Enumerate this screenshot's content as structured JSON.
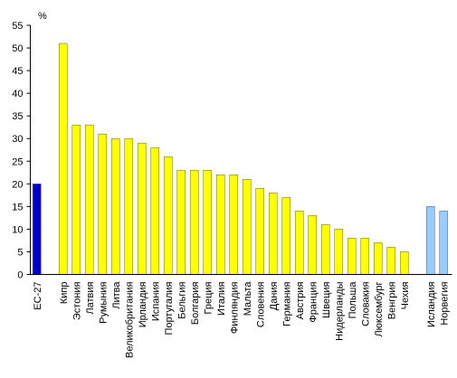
{
  "chart_data": {
    "type": "bar",
    "ylabel": "%",
    "ylim": [
      0,
      55
    ],
    "yticks": [
      0,
      5,
      10,
      15,
      20,
      25,
      30,
      35,
      40,
      45,
      50,
      55
    ],
    "grid": false,
    "colors": {
      "aggregate": "#0000cc",
      "member": "#ffff00",
      "non_member": "#99ccff",
      "outline": "#808000",
      "axis": "#000000"
    },
    "groups": [
      {
        "role": "aggregate",
        "categories": [
          "ЕС-27"
        ],
        "values": [
          20
        ]
      },
      {
        "role": "member",
        "categories": [
          "Кипр",
          "Эстония",
          "Латвия",
          "Румыния",
          "Литва",
          "Великобритания",
          "Ирландия",
          "Испания",
          "Португалия",
          "Бельгия",
          "Болгария",
          "Греция",
          "Италия",
          "Финляндия",
          "Мальта",
          "Словения",
          "Дания",
          "Германия",
          "Австрия",
          "Франция",
          "Швеция",
          "Нидерланды",
          "Польша",
          "Словакия",
          "Люксембург",
          "Венгрия",
          "Чехия"
        ],
        "values": [
          51,
          33,
          33,
          31,
          30,
          30,
          29,
          28,
          26,
          23,
          23,
          23,
          22,
          22,
          21,
          19,
          18,
          17,
          14,
          13,
          11,
          10,
          8,
          8,
          7,
          6,
          5
        ]
      },
      {
        "role": "non_member",
        "categories": [
          "Исландия",
          "Норвегия"
        ],
        "values": [
          15,
          14
        ]
      }
    ]
  }
}
